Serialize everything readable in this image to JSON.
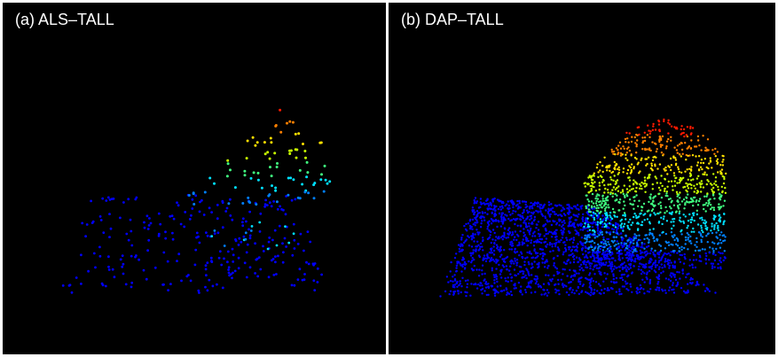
{
  "panels": [
    {
      "title": "(a) ALS–TALL"
    },
    {
      "title": "(b) DAP–TALL"
    }
  ],
  "colormap": [
    "#0000ff",
    "#0080ff",
    "#00e0ff",
    "#40ff80",
    "#c8ff00",
    "#ffe000",
    "#ff8000",
    "#ff1a00"
  ],
  "background": "#000000"
}
